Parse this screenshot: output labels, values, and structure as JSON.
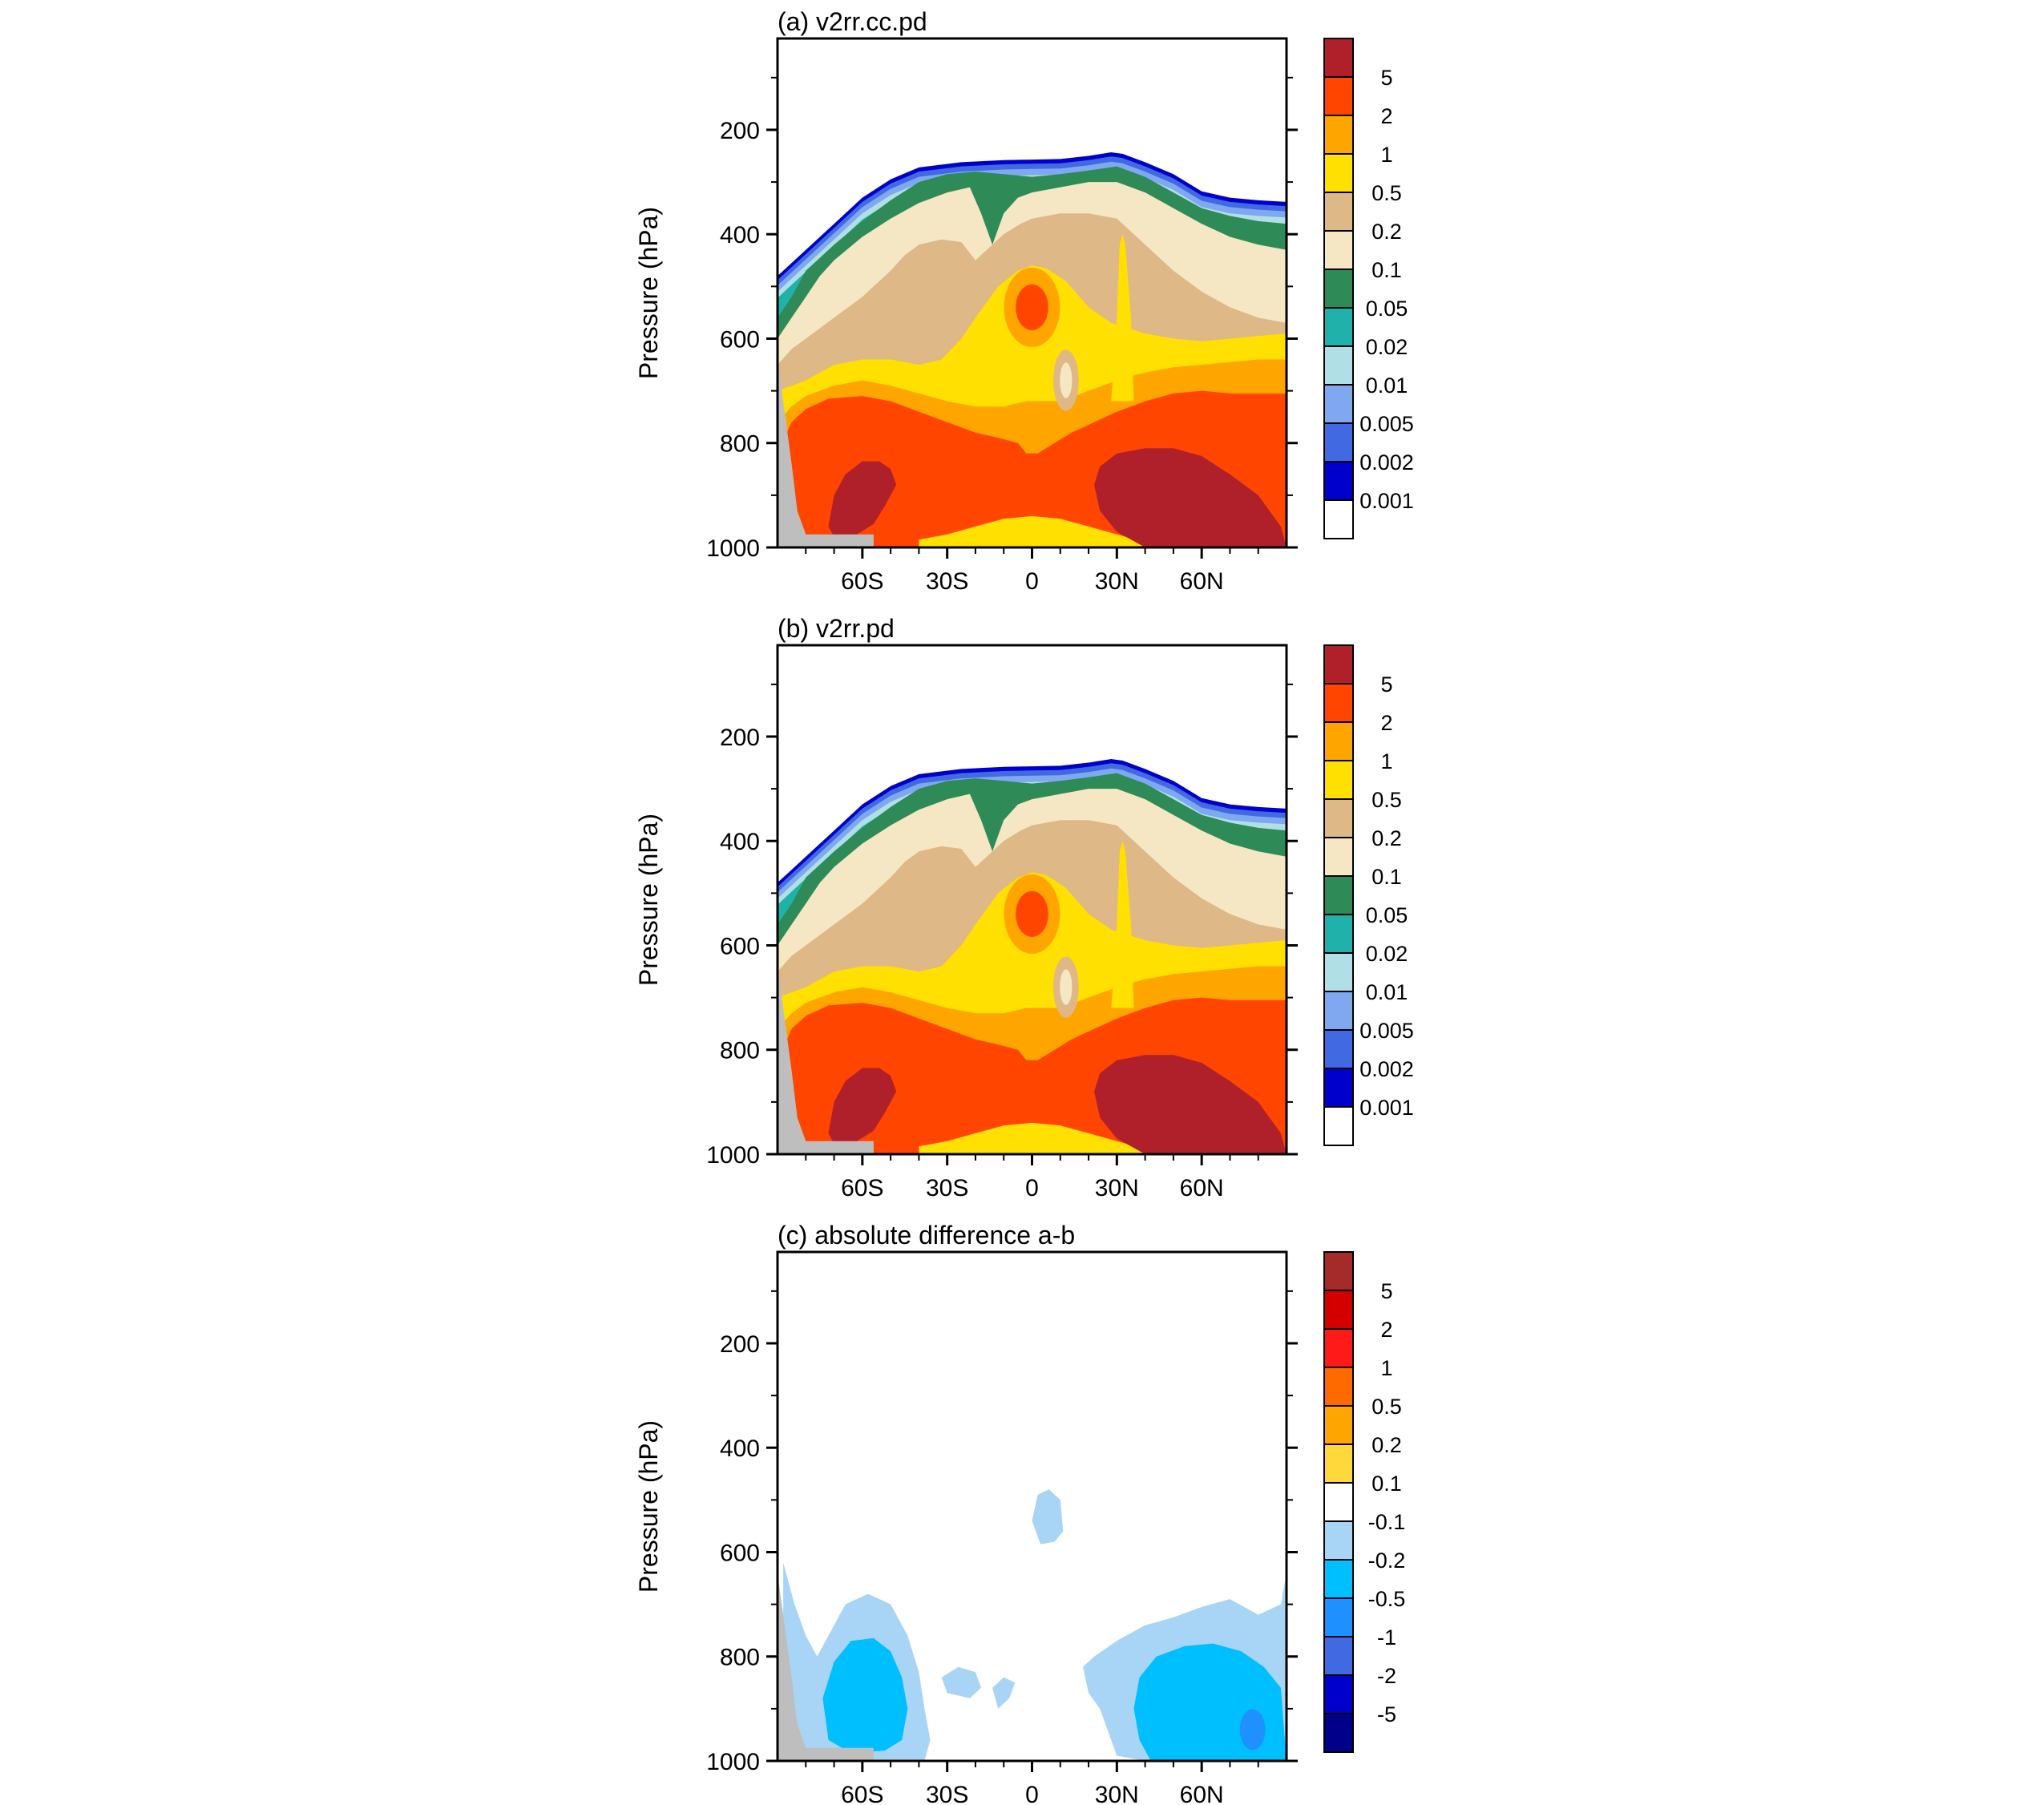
{
  "figure": {
    "panels": [
      {
        "id": "a",
        "title": "(a) v2rr.cc.pd"
      },
      {
        "id": "b",
        "title": "(b) v2rr.pd"
      },
      {
        "id": "c",
        "title": "(c) absolute difference a-b"
      }
    ]
  },
  "chart_data": [
    {
      "type": "contour",
      "title": "(a) v2rr.cc.pd",
      "ylabel": "Pressure (hPa)",
      "xlabel": "",
      "x_ticks": [
        "60S",
        "30S",
        "0",
        "30N",
        "60N"
      ],
      "x_tick_values": [
        -60,
        -30,
        0,
        30,
        60
      ],
      "xlim": [
        -90,
        90
      ],
      "y_ticks": [
        "200",
        "400",
        "600",
        "800",
        "1000"
      ],
      "y_tick_values": [
        200,
        400,
        600,
        800,
        1000
      ],
      "ylim": [
        1000,
        25
      ],
      "y_reversed": true,
      "colorbar": {
        "labels": [
          "5",
          "2",
          "1",
          "0.5",
          "0.2",
          "0.1",
          "0.05",
          "0.02",
          "0.01",
          "0.005",
          "0.002",
          "0.001"
        ],
        "colors": [
          "#b0202a",
          "#ff4500",
          "#ffa500",
          "#ffe000",
          "#deb887",
          "#f5e6c4",
          "#2e8b57",
          "#20b2aa",
          "#b0e0e6",
          "#7fa8f0",
          "#4169e1",
          "#0000cd",
          "#ffffff"
        ]
      },
      "features": {
        "tropopause_top_hPa": {
          "-90": 480,
          "-60": 320,
          "-40": 270,
          "0": 255,
          "30": 240,
          "60": 330,
          "90": 340
        },
        "core_max_low_level_south": {
          "lat": -55,
          "pressure": 900,
          "level": ">5"
        },
        "core_max_low_level_north": {
          "lat": 55,
          "pressure": 880,
          "level": ">5"
        },
        "mid_tropo_max": {
          "lat": 0,
          "pressure": 540,
          "level": "2-5"
        },
        "masked_topography": "Antarctica (gray)"
      }
    },
    {
      "type": "contour",
      "title": "(b) v2rr.pd",
      "ylabel": "Pressure (hPa)",
      "xlabel": "",
      "x_ticks": [
        "60S",
        "30S",
        "0",
        "30N",
        "60N"
      ],
      "x_tick_values": [
        -60,
        -30,
        0,
        30,
        60
      ],
      "xlim": [
        -90,
        90
      ],
      "y_ticks": [
        "200",
        "400",
        "600",
        "800",
        "1000"
      ],
      "y_tick_values": [
        200,
        400,
        600,
        800,
        1000
      ],
      "ylim": [
        1000,
        25
      ],
      "y_reversed": true,
      "colorbar": {
        "labels": [
          "5",
          "2",
          "1",
          "0.5",
          "0.2",
          "0.1",
          "0.05",
          "0.02",
          "0.01",
          "0.005",
          "0.002",
          "0.001"
        ],
        "colors": [
          "#b0202a",
          "#ff4500",
          "#ffa500",
          "#ffe000",
          "#deb887",
          "#f5e6c4",
          "#2e8b57",
          "#20b2aa",
          "#b0e0e6",
          "#7fa8f0",
          "#4169e1",
          "#0000cd",
          "#ffffff"
        ]
      }
    },
    {
      "type": "contour",
      "title": "(c) absolute difference a-b",
      "ylabel": "Pressure (hPa)",
      "xlabel": "",
      "x_ticks": [
        "60S",
        "30S",
        "0",
        "30N",
        "60N"
      ],
      "x_tick_values": [
        -60,
        -30,
        0,
        30,
        60
      ],
      "xlim": [
        -90,
        90
      ],
      "y_ticks": [
        "200",
        "400",
        "600",
        "800",
        "1000"
      ],
      "y_tick_values": [
        200,
        400,
        600,
        800,
        1000
      ],
      "ylim": [
        1000,
        25
      ],
      "y_reversed": true,
      "colorbar": {
        "labels": [
          "5",
          "2",
          "1",
          "0.5",
          "0.2",
          "0.1",
          "-0.1",
          "-0.2",
          "-0.5",
          "-1",
          "-2",
          "-5"
        ],
        "colors": [
          "#a52a2a",
          "#d40000",
          "#ff1a1a",
          "#ff6a00",
          "#ffa500",
          "#ffd93b",
          "#ffffff",
          "#a8d4f5",
          "#00bfff",
          "#1e90ff",
          "#4169e1",
          "#0000cd",
          "#00008b"
        ]
      },
      "features": {
        "south_negative_region": {
          "lat": -55,
          "pressure": 850,
          "level": "-0.5 to -0.2"
        },
        "north_negative_region": {
          "lat": 55,
          "pressure": 870,
          "level": "-0.5 to -0.2"
        },
        "small_mid_patch": {
          "lat": 5,
          "pressure": 530,
          "level": "-0.2 to -0.1"
        }
      }
    }
  ]
}
